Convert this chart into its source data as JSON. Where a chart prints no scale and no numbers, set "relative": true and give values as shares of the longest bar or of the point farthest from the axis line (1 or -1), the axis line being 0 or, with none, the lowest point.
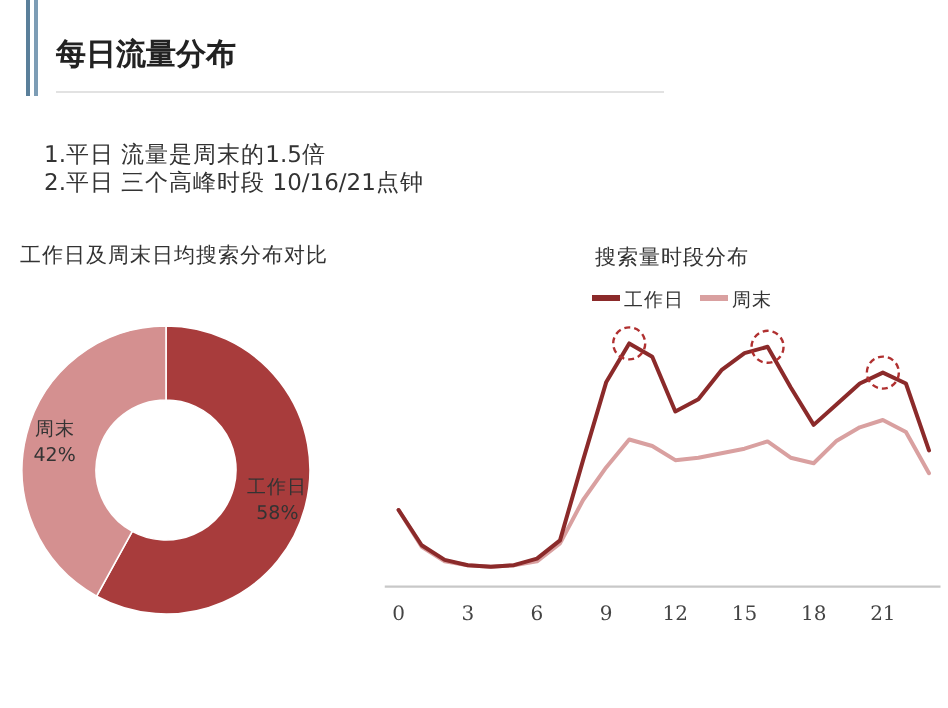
{
  "chart_data": [
    {
      "type": "donut",
      "title": "工作日及周末日均搜索分布对比",
      "annotations": [
        "每日流量分布",
        "1.平日 流量是周末的1.5倍",
        "2.平日 三个高峰时段 10/16/21点钟"
      ],
      "categories": [
        "工作日",
        "周末"
      ],
      "values": [
        58,
        42
      ],
      "colors": [
        "#a83c3c",
        "#d49090"
      ],
      "value_labels": [
        "58%",
        "42%"
      ]
    },
    {
      "type": "line",
      "title": "搜索量时段分布",
      "relative": true,
      "legend": "top",
      "x": [
        0,
        1,
        2,
        3,
        4,
        5,
        6,
        7,
        8,
        9,
        10,
        11,
        12,
        13,
        14,
        15,
        16,
        17,
        18,
        19,
        20,
        21,
        22,
        23
      ],
      "xlim": [
        -0.6,
        23.5
      ],
      "xticks": [
        0,
        3,
        6,
        9,
        12,
        15,
        18,
        21
      ],
      "series": [
        {
          "name": "工作日",
          "color": "#8b2a2a",
          "values": [
            0.315,
            0.17,
            0.11,
            0.088,
            0.082,
            0.088,
            0.115,
            0.19,
            0.52,
            0.84,
            1,
            0.945,
            0.72,
            0.77,
            0.89,
            0.96,
            0.986,
            0.82,
            0.665,
            0.75,
            0.835,
            0.88,
            0.835,
            0.56
          ]
        },
        {
          "name": "周末",
          "color": "#d9a0a0",
          "values": [
            0.315,
            0.164,
            0.104,
            0.088,
            0.082,
            0.088,
            0.104,
            0.178,
            0.356,
            0.49,
            0.605,
            0.578,
            0.52,
            0.53,
            0.548,
            0.567,
            0.597,
            0.53,
            0.507,
            0.6,
            0.655,
            0.685,
            0.636,
            0.466
          ]
        }
      ]
    }
  ]
}
